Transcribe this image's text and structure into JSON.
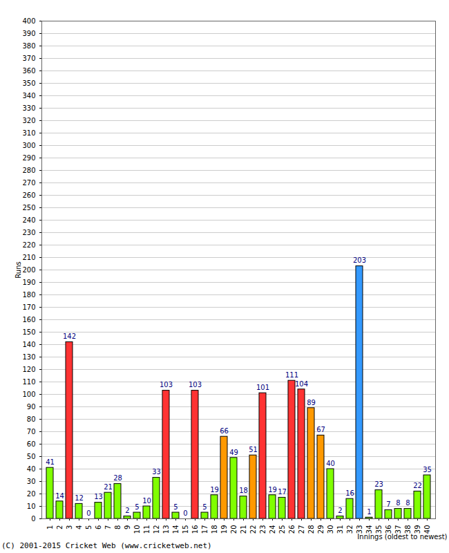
{
  "chart_data": {
    "type": "bar",
    "y_label": "Runs",
    "x_label": "Innings (oldest to newest)",
    "caption": "(C) 2001-2015 Cricket Web (www.cricketweb.net)",
    "categories": [
      "1",
      "2",
      "3",
      "4",
      "5",
      "6",
      "7",
      "8",
      "9",
      "10",
      "11",
      "12",
      "13",
      "14",
      "15",
      "16",
      "17",
      "18",
      "19",
      "20",
      "21",
      "22",
      "23",
      "24",
      "25",
      "26",
      "27",
      "28",
      "29",
      "30",
      "31",
      "32",
      "33",
      "34",
      "35",
      "36",
      "37",
      "38",
      "39",
      "40"
    ],
    "values": [
      41,
      14,
      142,
      12,
      0,
      13,
      21,
      28,
      2,
      5,
      10,
      33,
      103,
      5,
      0,
      103,
      5,
      19,
      66,
      49,
      18,
      51,
      101,
      19,
      17,
      111,
      104,
      89,
      67,
      40,
      2,
      16,
      203,
      1,
      23,
      7,
      8,
      8,
      22,
      35
    ],
    "colors": [
      "#80ff00",
      "#80ff00",
      "#ff3333",
      "#80ff00",
      "#80ff00",
      "#80ff00",
      "#80ff00",
      "#80ff00",
      "#80ff00",
      "#80ff00",
      "#80ff00",
      "#80ff00",
      "#ff3333",
      "#80ff00",
      "#80ff00",
      "#ff3333",
      "#80ff00",
      "#80ff00",
      "#ff9900",
      "#80ff00",
      "#80ff00",
      "#ff9900",
      "#ff3333",
      "#80ff00",
      "#80ff00",
      "#ff3333",
      "#ff3333",
      "#ff9900",
      "#ff9900",
      "#80ff00",
      "#80ff00",
      "#80ff00",
      "#3399ff",
      "#80ff00",
      "#80ff00",
      "#80ff00",
      "#80ff00",
      "#80ff00",
      "#80ff00",
      "#80ff00"
    ],
    "ylim": [
      0,
      400
    ],
    "yticks": [
      0,
      10,
      20,
      30,
      40,
      50,
      60,
      70,
      80,
      90,
      100,
      110,
      120,
      130,
      140,
      150,
      160,
      170,
      180,
      190,
      200,
      210,
      220,
      230,
      240,
      250,
      260,
      270,
      280,
      290,
      300,
      310,
      320,
      330,
      340,
      350,
      360,
      370,
      380,
      390,
      400
    ],
    "grid": true,
    "data_labels": true
  }
}
